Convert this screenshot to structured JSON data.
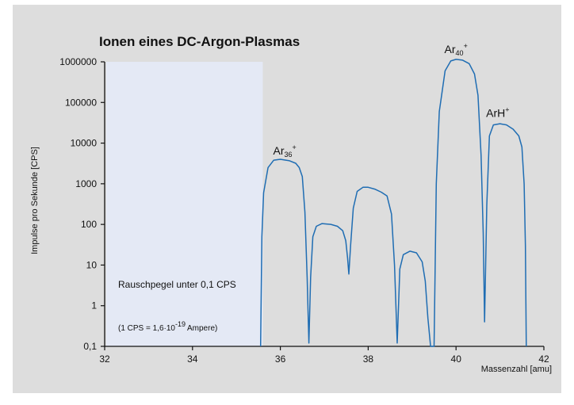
{
  "chart_data": {
    "type": "line",
    "title": "Ionen eines DC-Argon-Plasmas",
    "xlabel": "Massenzahl [amu]",
    "ylabel": "Impulse pro Sekunde  [CPS]",
    "xlim": [
      32,
      42
    ],
    "ylim": [
      0.1,
      1000000
    ],
    "yscale": "log",
    "x_ticks": [
      "32",
      "34",
      "36",
      "38",
      "40",
      "42"
    ],
    "y_ticks": [
      "0,1",
      "1",
      "10",
      "100",
      "1000",
      "10000",
      "100000",
      "1000000"
    ],
    "noise_region": {
      "x_range": [
        32,
        35.6
      ],
      "label": "Rauschpegel unter 0,1 CPS",
      "color": "#e4e9f5"
    },
    "note": {
      "prefix": "(1 CPS = 1,6·10",
      "exponent": "-19",
      "suffix": "Ampere)"
    },
    "line_color": "#1f6db3",
    "series": [
      {
        "values": [
          [
            35.55,
            0.1
          ],
          [
            35.58,
            50
          ],
          [
            35.62,
            600
          ],
          [
            35.72,
            2500
          ],
          [
            35.85,
            3800
          ],
          [
            36.0,
            4000
          ],
          [
            36.2,
            3700
          ],
          [
            36.35,
            3200
          ],
          [
            36.43,
            2500
          ],
          [
            36.5,
            1500
          ],
          [
            36.56,
            200
          ],
          [
            36.61,
            5
          ],
          [
            36.65,
            0.12
          ],
          [
            36.69,
            5
          ],
          [
            36.74,
            50
          ],
          [
            36.82,
            90
          ],
          [
            36.95,
            105
          ],
          [
            37.15,
            100
          ],
          [
            37.3,
            90
          ],
          [
            37.42,
            70
          ],
          [
            37.49,
            40
          ],
          [
            37.53,
            15
          ],
          [
            37.56,
            6
          ],
          [
            37.6,
            30
          ],
          [
            37.66,
            250
          ],
          [
            37.75,
            650
          ],
          [
            37.88,
            820
          ],
          [
            38.0,
            820
          ],
          [
            38.15,
            740
          ],
          [
            38.3,
            620
          ],
          [
            38.43,
            500
          ],
          [
            38.53,
            180
          ],
          [
            38.6,
            10
          ],
          [
            38.66,
            0.12
          ],
          [
            38.72,
            8
          ],
          [
            38.8,
            18
          ],
          [
            38.95,
            22
          ],
          [
            39.1,
            20
          ],
          [
            39.23,
            12
          ],
          [
            39.3,
            4
          ],
          [
            39.36,
            0.5
          ],
          [
            39.42,
            0.1
          ],
          [
            39.5,
            0.1
          ],
          [
            39.55,
            1000
          ],
          [
            39.62,
            60000
          ],
          [
            39.75,
            600000
          ],
          [
            39.88,
            1050000
          ],
          [
            40.0,
            1150000
          ],
          [
            40.15,
            1100000
          ],
          [
            40.3,
            900000
          ],
          [
            40.42,
            500000
          ],
          [
            40.5,
            150000
          ],
          [
            40.57,
            5000
          ],
          [
            40.62,
            60
          ],
          [
            40.65,
            0.4
          ],
          [
            40.7,
            300
          ],
          [
            40.76,
            15000
          ],
          [
            40.85,
            28000
          ],
          [
            41.0,
            30000
          ],
          [
            41.15,
            28000
          ],
          [
            41.3,
            22000
          ],
          [
            41.43,
            15000
          ],
          [
            41.5,
            8000
          ],
          [
            41.55,
            1000
          ],
          [
            41.58,
            30
          ],
          [
            41.6,
            0.1
          ]
        ]
      }
    ],
    "peak_labels": [
      {
        "base": "Ar",
        "sub": "36",
        "sup": "+",
        "x": 36.1,
        "y": 5200
      },
      {
        "base": "Ar",
        "sub": "40",
        "sup": "+",
        "x": 40.0,
        "y": 1650000
      },
      {
        "base": "ArH",
        "sub": "",
        "sup": "+",
        "x": 40.95,
        "y": 44000
      }
    ]
  }
}
